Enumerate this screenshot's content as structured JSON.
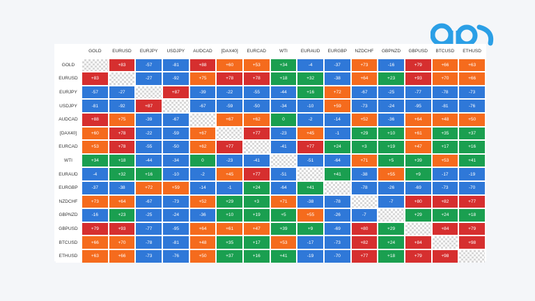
{
  "colors": {
    "strong_positive": "#d62f2f",
    "positive": "#f56b1d",
    "neutral": "#1a9f50",
    "negative": "#2f78d8",
    "logo_accent": "#2b9fe6"
  },
  "chart_data": {
    "type": "heatmap",
    "title": "",
    "labels": [
      "GOLD",
      "EURUSD",
      "EURJPY",
      "USDJPY",
      "AUDCAD",
      "[DAX40]",
      "EURCAD",
      "WTI",
      "EURAUD",
      "EURGBP",
      "NZDCHF",
      "GBPNZD",
      "GBPUSD",
      "BTCUSD",
      "ETHUSD"
    ],
    "values": [
      [
        null,
        "+83",
        "-57",
        "-81",
        "+88",
        "+60",
        "+53",
        "+34",
        "-4",
        "-37",
        "+73",
        "-16",
        "+79",
        "+66",
        "+63"
      ],
      [
        "+83",
        null,
        "-27",
        "-92",
        "+75",
        "+78",
        "+78",
        "+18",
        "+32",
        "-38",
        "+64",
        "+23",
        "+93",
        "+70",
        "+66"
      ],
      [
        "-57",
        "-27",
        null,
        "+87",
        "-39",
        "-22",
        "-55",
        "-44",
        "+16",
        "+72",
        "-67",
        "-25",
        "-77",
        "-78",
        "-73"
      ],
      [
        "-81",
        "-92",
        "+87",
        null,
        "-67",
        "-59",
        "-50",
        "-34",
        "-10",
        "+59",
        "-73",
        "-24",
        "-95",
        "-81",
        "-76"
      ],
      [
        "+88",
        "+75",
        "-39",
        "-67",
        null,
        "+67",
        "+62",
        "0",
        "-2",
        "-14",
        "+52",
        "-36",
        "+64",
        "+48",
        "+50"
      ],
      [
        "+60",
        "+78",
        "-22",
        "-59",
        "+67",
        null,
        "+77",
        "-23",
        "+45",
        "-1",
        "+29",
        "+10",
        "+61",
        "+35",
        "+37"
      ],
      [
        "+53",
        "+78",
        "-55",
        "-50",
        "+62",
        "+77",
        null,
        "-41",
        "+77",
        "+24",
        "+3",
        "+19",
        "+47",
        "+17",
        "+16"
      ],
      [
        "+34",
        "+18",
        "-44",
        "-34",
        "0",
        "-23",
        "-41",
        null,
        "-51",
        "-64",
        "+71",
        "+5",
        "+39",
        "+53",
        "+41"
      ],
      [
        "-4",
        "+32",
        "+16",
        "-10",
        "-2",
        "+45",
        "+77",
        "-51",
        null,
        "+41",
        "-38",
        "+55",
        "+9",
        "-17",
        "-19"
      ],
      [
        "-37",
        "-38",
        "+72",
        "+59",
        "-14",
        "-1",
        "+24",
        "-64",
        "+41",
        null,
        "-78",
        "-26",
        "-69",
        "-73",
        "-70"
      ],
      [
        "+73",
        "+64",
        "-67",
        "-73",
        "+52",
        "+29",
        "+3",
        "+71",
        "-38",
        "-78",
        null,
        "-7",
        "+80",
        "+82",
        "+77"
      ],
      [
        "-16",
        "+23",
        "-25",
        "-24",
        "-36",
        "+10",
        "+19",
        "+5",
        "+55",
        "-26",
        "-7",
        null,
        "+29",
        "+24",
        "+18"
      ],
      [
        "+79",
        "+93",
        "-77",
        "-95",
        "+64",
        "+61",
        "+47",
        "+39",
        "+9",
        "-69",
        "+80",
        "+29",
        null,
        "+84",
        "+79"
      ],
      [
        "+66",
        "+70",
        "-78",
        "-81",
        "+48",
        "+35",
        "+17",
        "+53",
        "-17",
        "-73",
        "+82",
        "+24",
        "+84",
        null,
        "+98"
      ],
      [
        "+63",
        "+66",
        "-73",
        "-76",
        "+50",
        "+37",
        "+16",
        "+41",
        "-19",
        "-70",
        "+77",
        "+18",
        "+79",
        "+98",
        null
      ]
    ]
  }
}
